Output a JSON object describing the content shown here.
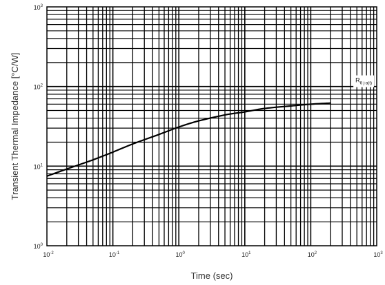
{
  "chart_data": {
    "type": "line",
    "xlabel": "Time (sec)",
    "ylabel": "Transient Thermal Impedance [°C/W]",
    "xscale": "log",
    "yscale": "log",
    "xlim": [
      0.01,
      1000
    ],
    "ylim": [
      1,
      1000
    ],
    "grid": true,
    "x_ticks": [
      {
        "base": "10",
        "exp": "-2"
      },
      {
        "base": "10",
        "exp": "-1"
      },
      {
        "base": "10",
        "exp": "0"
      },
      {
        "base": "10",
        "exp": "1"
      },
      {
        "base": "10",
        "exp": "2"
      },
      {
        "base": "10",
        "exp": "3"
      }
    ],
    "y_ticks": [
      {
        "base": "10",
        "exp": "0"
      },
      {
        "base": "10",
        "exp": "1"
      },
      {
        "base": "10",
        "exp": "2"
      },
      {
        "base": "10",
        "exp": "3"
      }
    ],
    "series": [
      {
        "x": [
          0.01,
          0.02,
          0.05,
          0.1,
          0.2,
          0.5,
          1,
          2,
          5,
          10,
          20,
          50,
          100,
          200
        ],
        "y": [
          7.5,
          9.2,
          12,
          15,
          19,
          25,
          31,
          37,
          44,
          48,
          53,
          57,
          60,
          62
        ]
      }
    ],
    "annotation": {
      "text": "R",
      "sub": "θ j-a(t)",
      "x": 200,
      "y": 120
    }
  }
}
